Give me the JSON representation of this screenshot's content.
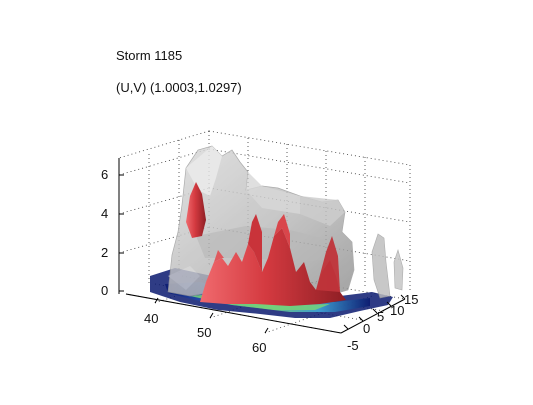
{
  "chart_data": {
    "type": "surface3d",
    "title": "Storm 1185",
    "subtitle": "(U,V) (1.0003,1.0297)",
    "xlabel": "",
    "ylabel": "",
    "zlabel": "",
    "x_ticks": [
      "40",
      "50",
      "60"
    ],
    "y_ticks": [
      "-5",
      "0",
      "5",
      "10",
      "15"
    ],
    "z_ticks": [
      "0",
      "2",
      "4",
      "6"
    ],
    "xlim": [
      36,
      70
    ],
    "ylim": [
      -8,
      17
    ],
    "zlim": [
      0,
      7
    ],
    "grid": true,
    "surfaces": [
      {
        "role": "outer isosurface",
        "color": "#b8b8b8",
        "transparent": true
      },
      {
        "role": "inner isosurface",
        "color": "#cc2f38",
        "transparent": false
      },
      {
        "role": "base layer",
        "colors": [
          "#0a1a70",
          "#2f62c6",
          "#3fa6d8",
          "#74d47a"
        ]
      }
    ]
  }
}
